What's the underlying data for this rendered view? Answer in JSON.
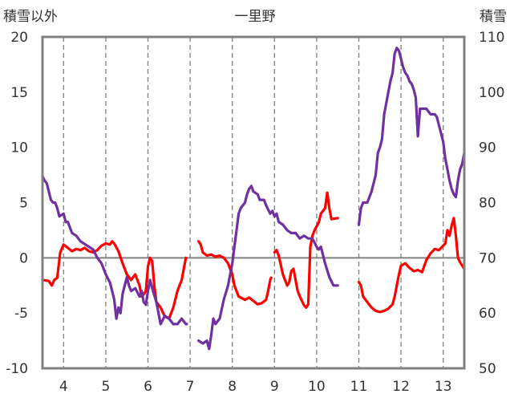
{
  "chart_data": {
    "type": "line",
    "title": "一里野",
    "ylabel_left": "積雪以外",
    "ylabel_right": "積雪",
    "x_ticks": [
      4,
      5,
      6,
      7,
      8,
      9,
      10,
      11,
      12,
      13
    ],
    "x_tick_labels": [
      "4",
      "5",
      "6",
      "7",
      "8",
      "9",
      "10",
      "11",
      "12",
      "13"
    ],
    "xlim": [
      3.5,
      13.5
    ],
    "ylim_left": [
      -10,
      20
    ],
    "ylim_right": [
      50,
      110
    ],
    "y_ticks_left": [
      "-10",
      "-5",
      "0",
      "5",
      "10",
      "15",
      "20"
    ],
    "y_ticks_right": [
      "50",
      "60",
      "70",
      "80",
      "90",
      "100",
      "110"
    ],
    "grid": true,
    "colors": {
      "series_red": "#ff0000",
      "series_purple": "#7030a0",
      "frame": "#808080",
      "grid": "#808080",
      "zero_line": "#808080"
    },
    "series": [
      {
        "axis": "left",
        "color": "#ff0000",
        "segments": [
          [
            [
              3.5,
              -2.0
            ],
            [
              3.65,
              -2.1
            ],
            [
              3.72,
              -2.5
            ],
            [
              3.78,
              -2.0
            ],
            [
              3.85,
              -1.8
            ],
            [
              3.92,
              0.5
            ],
            [
              4.0,
              1.2
            ],
            [
              4.1,
              0.9
            ],
            [
              4.2,
              0.6
            ],
            [
              4.3,
              0.8
            ],
            [
              4.4,
              0.7
            ],
            [
              4.5,
              0.9
            ],
            [
              4.6,
              0.6
            ],
            [
              4.7,
              0.5
            ],
            [
              4.8,
              0.7
            ],
            [
              4.9,
              1.1
            ],
            [
              5.0,
              1.3
            ],
            [
              5.1,
              1.2
            ],
            [
              5.15,
              1.5
            ],
            [
              5.2,
              1.3
            ],
            [
              5.3,
              0.6
            ],
            [
              5.4,
              -0.5
            ],
            [
              5.5,
              -1.5
            ],
            [
              5.6,
              -2.0
            ],
            [
              5.7,
              -1.5
            ],
            [
              5.8,
              -2.5
            ],
            [
              5.85,
              -3.5
            ],
            [
              5.9,
              -3.3
            ],
            [
              5.95,
              -3.0
            ],
            [
              6.0,
              -0.8
            ],
            [
              6.05,
              0.0
            ],
            [
              6.1,
              -0.3
            ],
            [
              6.15,
              -2.5
            ],
            [
              6.2,
              -4.0
            ],
            [
              6.3,
              -4.5
            ],
            [
              6.4,
              -5.3
            ],
            [
              6.5,
              -5.5
            ],
            [
              6.6,
              -4.5
            ],
            [
              6.7,
              -3.0
            ],
            [
              6.8,
              -2.0
            ],
            [
              6.85,
              -1.0
            ],
            [
              6.9,
              0.0
            ]
          ],
          [
            [
              7.2,
              1.5
            ],
            [
              7.25,
              1.2
            ],
            [
              7.3,
              0.5
            ],
            [
              7.4,
              0.2
            ],
            [
              7.5,
              0.3
            ],
            [
              7.6,
              0.1
            ],
            [
              7.7,
              0.2
            ],
            [
              7.8,
              0.0
            ],
            [
              7.9,
              -0.5
            ],
            [
              8.0,
              -1.5
            ],
            [
              8.05,
              -2.5
            ],
            [
              8.15,
              -3.5
            ],
            [
              8.3,
              -3.8
            ],
            [
              8.4,
              -3.6
            ],
            [
              8.5,
              -3.9
            ],
            [
              8.6,
              -4.2
            ],
            [
              8.7,
              -4.1
            ],
            [
              8.8,
              -3.8
            ],
            [
              8.85,
              -3.0
            ],
            [
              8.9,
              -2.0
            ],
            [
              8.92,
              -1.8
            ]
          ],
          [
            [
              9.0,
              0.5
            ],
            [
              9.05,
              0.7
            ],
            [
              9.1,
              0.2
            ],
            [
              9.2,
              -1.5
            ],
            [
              9.3,
              -2.5
            ],
            [
              9.35,
              -2.2
            ],
            [
              9.4,
              -1.2
            ],
            [
              9.45,
              -1.0
            ],
            [
              9.5,
              -2.0
            ],
            [
              9.55,
              -3.0
            ],
            [
              9.6,
              -3.5
            ],
            [
              9.7,
              -4.3
            ],
            [
              9.75,
              -4.5
            ],
            [
              9.8,
              -4.2
            ],
            [
              9.83,
              -1.0
            ],
            [
              9.85,
              1.0
            ],
            [
              9.9,
              2.0
            ],
            [
              9.95,
              2.5
            ],
            [
              10.05,
              3.2
            ],
            [
              10.1,
              4.0
            ],
            [
              10.2,
              4.5
            ],
            [
              10.25,
              5.9
            ],
            [
              10.3,
              4.5
            ],
            [
              10.35,
              3.5
            ],
            [
              10.5,
              3.6
            ]
          ],
          [
            [
              11.0,
              -2.2
            ],
            [
              11.05,
              -2.5
            ],
            [
              11.1,
              -3.5
            ],
            [
              11.2,
              -4.0
            ],
            [
              11.3,
              -4.5
            ],
            [
              11.4,
              -4.8
            ],
            [
              11.5,
              -4.9
            ],
            [
              11.6,
              -4.8
            ],
            [
              11.7,
              -4.6
            ],
            [
              11.8,
              -4.2
            ],
            [
              11.85,
              -3.5
            ],
            [
              11.9,
              -2.5
            ],
            [
              11.95,
              -1.5
            ],
            [
              12.0,
              -0.7
            ],
            [
              12.1,
              -0.5
            ],
            [
              12.2,
              -0.9
            ],
            [
              12.3,
              -1.2
            ],
            [
              12.4,
              -1.1
            ],
            [
              12.5,
              -1.3
            ],
            [
              12.6,
              -0.2
            ],
            [
              12.7,
              0.4
            ],
            [
              12.8,
              0.8
            ],
            [
              12.9,
              0.7
            ],
            [
              13.0,
              1.1
            ],
            [
              13.05,
              1.3
            ],
            [
              13.1,
              2.5
            ],
            [
              13.15,
              2.0
            ],
            [
              13.2,
              2.9
            ],
            [
              13.25,
              3.6
            ],
            [
              13.3,
              2.0
            ],
            [
              13.35,
              0.0
            ],
            [
              13.4,
              -0.4
            ],
            [
              13.5,
              -1.0
            ]
          ]
        ]
      },
      {
        "axis": "right",
        "color": "#7030a0",
        "segments": [
          [
            [
              3.5,
              84.8
            ],
            [
              3.55,
              84.0
            ],
            [
              3.6,
              83.5
            ],
            [
              3.65,
              82.0
            ],
            [
              3.7,
              80.5
            ],
            [
              3.75,
              80.0
            ],
            [
              3.8,
              80.0
            ],
            [
              3.85,
              79.0
            ],
            [
              3.9,
              77.5
            ],
            [
              4.0,
              78.0
            ],
            [
              4.05,
              76.5
            ],
            [
              4.1,
              76.5
            ],
            [
              4.2,
              74.5
            ],
            [
              4.3,
              74.0
            ],
            [
              4.4,
              73.0
            ],
            [
              4.5,
              72.5
            ],
            [
              4.6,
              72.0
            ],
            [
              4.7,
              71.5
            ],
            [
              4.8,
              70.0
            ],
            [
              4.9,
              69.0
            ],
            [
              5.0,
              67.0
            ],
            [
              5.1,
              65.5
            ],
            [
              5.2,
              62.5
            ],
            [
              5.25,
              59.0
            ],
            [
              5.3,
              61.0
            ],
            [
              5.35,
              60.0
            ],
            [
              5.4,
              63.5
            ],
            [
              5.5,
              66.5
            ],
            [
              5.55,
              65.0
            ],
            [
              5.6,
              64.0
            ],
            [
              5.7,
              64.5
            ],
            [
              5.8,
              63.0
            ],
            [
              5.85,
              64.0
            ],
            [
              5.9,
              62.0
            ],
            [
              5.95,
              61.5
            ],
            [
              6.0,
              64.0
            ],
            [
              6.05,
              66.0
            ],
            [
              6.1,
              64.5
            ],
            [
              6.2,
              62.0
            ],
            [
              6.3,
              58.0
            ],
            [
              6.4,
              59.5
            ],
            [
              6.5,
              59.0
            ],
            [
              6.6,
              58.0
            ],
            [
              6.7,
              58.0
            ],
            [
              6.8,
              59.0
            ],
            [
              6.85,
              58.5
            ],
            [
              6.9,
              58.0
            ],
            [
              6.92,
              58.0
            ]
          ],
          [
            [
              7.2,
              55.0
            ],
            [
              7.3,
              54.5
            ],
            [
              7.4,
              55.0
            ],
            [
              7.45,
              53.5
            ],
            [
              7.5,
              56.0
            ],
            [
              7.55,
              59.0
            ],
            [
              7.6,
              58.0
            ],
            [
              7.7,
              59.0
            ],
            [
              7.8,
              62.5
            ],
            [
              7.9,
              65.0
            ],
            [
              8.0,
              69.0
            ],
            [
              8.05,
              72.0
            ],
            [
              8.1,
              75.0
            ],
            [
              8.15,
              78.0
            ],
            [
              8.2,
              79.0
            ],
            [
              8.25,
              79.5
            ],
            [
              8.3,
              80.0
            ],
            [
              8.35,
              81.5
            ],
            [
              8.4,
              82.5
            ],
            [
              8.45,
              83.0
            ],
            [
              8.5,
              82.0
            ],
            [
              8.6,
              81.5
            ],
            [
              8.65,
              80.5
            ],
            [
              8.75,
              80.5
            ],
            [
              8.8,
              79.5
            ],
            [
              8.9,
              78.0
            ],
            [
              8.95,
              78.5
            ],
            [
              9.0,
              77.5
            ],
            [
              9.05,
              78.0
            ],
            [
              9.1,
              76.5
            ],
            [
              9.2,
              76.0
            ],
            [
              9.3,
              75.0
            ],
            [
              9.4,
              74.5
            ],
            [
              9.5,
              74.5
            ],
            [
              9.6,
              73.5
            ],
            [
              9.7,
              74.0
            ],
            [
              9.8,
              73.5
            ],
            [
              9.9,
              73.5
            ],
            [
              10.0,
              72.0
            ],
            [
              10.05,
              71.5
            ],
            [
              10.1,
              72.0
            ],
            [
              10.2,
              69.0
            ],
            [
              10.3,
              66.5
            ],
            [
              10.4,
              65.0
            ],
            [
              10.5,
              65.0
            ]
          ],
          [
            [
              11.0,
              76.0
            ],
            [
              11.05,
              79.0
            ],
            [
              11.1,
              80.0
            ],
            [
              11.2,
              80.0
            ],
            [
              11.3,
              82.0
            ],
            [
              11.4,
              85.0
            ],
            [
              11.45,
              89.0
            ],
            [
              11.5,
              90.0
            ],
            [
              11.55,
              91.5
            ],
            [
              11.6,
              96.0
            ],
            [
              11.7,
              100.0
            ],
            [
              11.75,
              102.0
            ],
            [
              11.8,
              103.5
            ],
            [
              11.85,
              107.0
            ],
            [
              11.9,
              108.0
            ],
            [
              11.95,
              107.5
            ],
            [
              12.0,
              106.0
            ],
            [
              12.05,
              104.5
            ],
            [
              12.1,
              103.5
            ],
            [
              12.15,
              103.0
            ],
            [
              12.2,
              102.0
            ],
            [
              12.25,
              101.5
            ],
            [
              12.3,
              100.5
            ],
            [
              12.35,
              99.0
            ],
            [
              12.4,
              92.0
            ],
            [
              12.45,
              97.0
            ],
            [
              12.5,
              97.0
            ],
            [
              12.6,
              97.0
            ],
            [
              12.7,
              96.0
            ],
            [
              12.8,
              96.0
            ],
            [
              12.85,
              95.5
            ],
            [
              12.9,
              94.0
            ],
            [
              12.95,
              92.5
            ],
            [
              13.0,
              91.0
            ],
            [
              13.05,
              88.0
            ],
            [
              13.1,
              86.0
            ],
            [
              13.15,
              84.0
            ],
            [
              13.2,
              82.5
            ],
            [
              13.25,
              81.5
            ],
            [
              13.3,
              81.0
            ],
            [
              13.35,
              84.0
            ],
            [
              13.4,
              86.0
            ],
            [
              13.45,
              87.0
            ],
            [
              13.5,
              89.0
            ]
          ]
        ]
      }
    ]
  }
}
